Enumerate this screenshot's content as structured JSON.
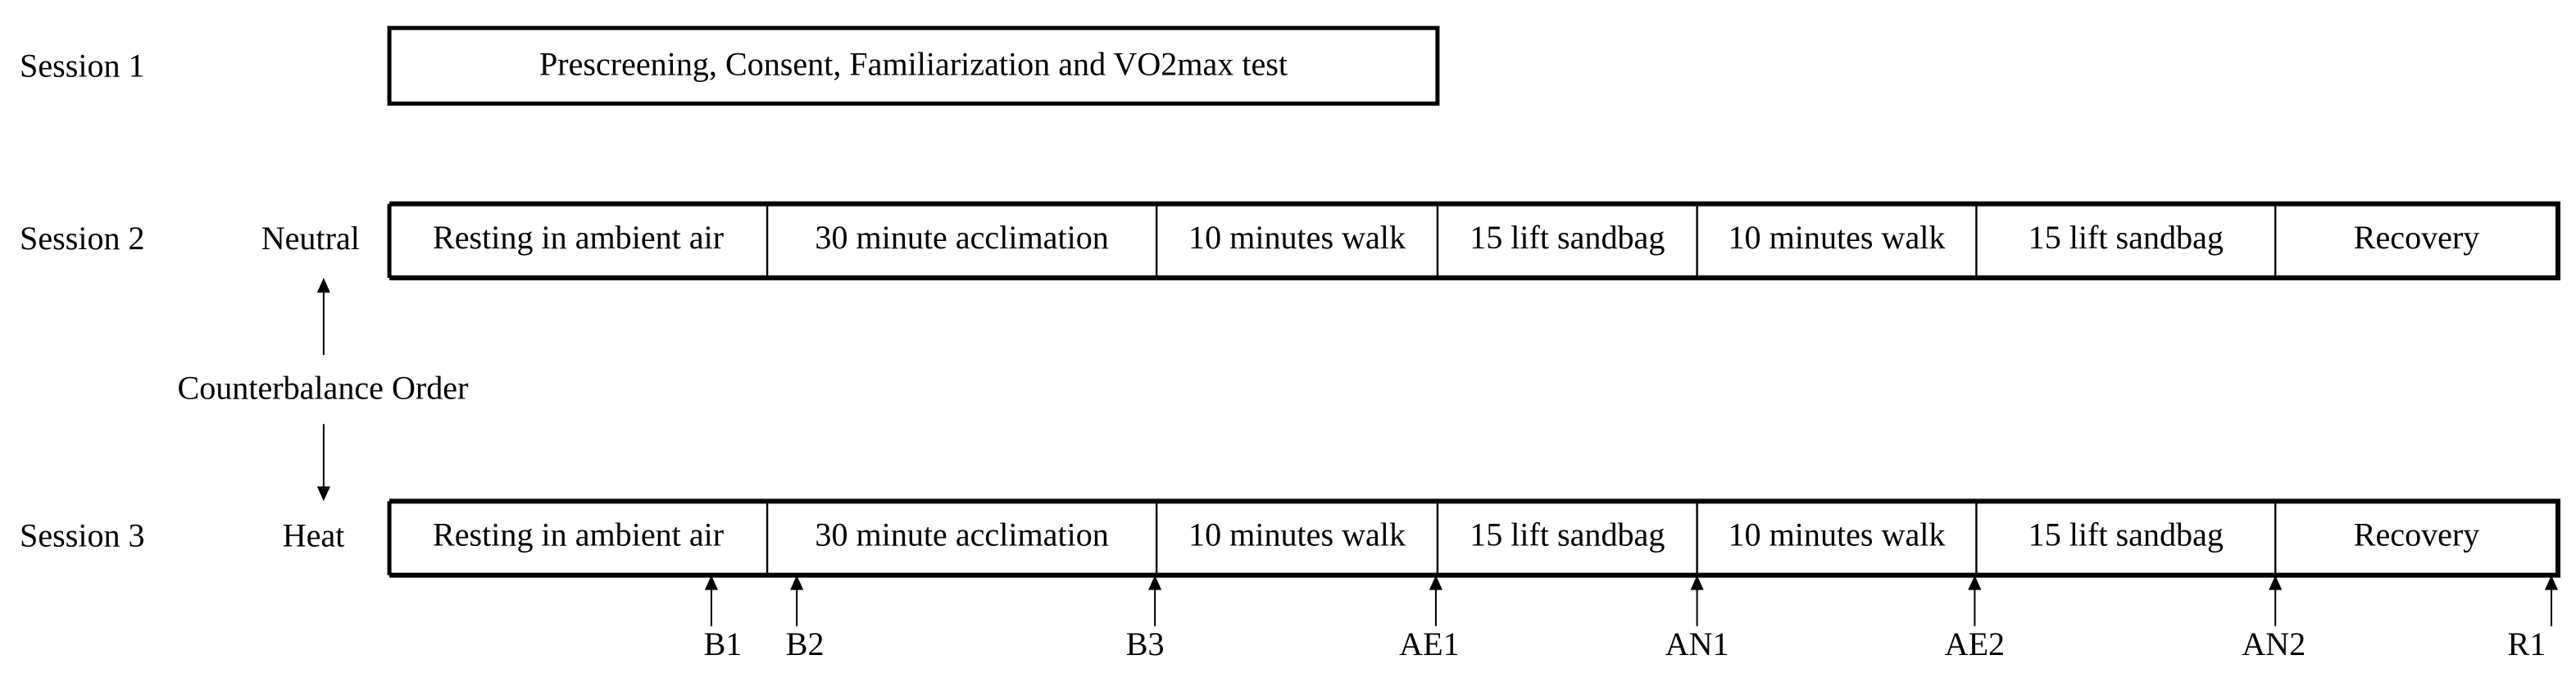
{
  "session1": {
    "label": "Session 1",
    "box": "Prescreening, Consent, Familiarization and VO2max test"
  },
  "session2": {
    "label": "Session 2",
    "condition": "Neutral",
    "phases": [
      "Resting in ambient air",
      "30 minute acclimation",
      "10 minutes walk",
      "15 lift sandbag",
      "10 minutes walk",
      "15 lift sandbag",
      "Recovery"
    ]
  },
  "counterbalance": "Counterbalance Order",
  "session3": {
    "label": "Session 3",
    "condition": "Heat",
    "phases": [
      "Resting in ambient air",
      "30 minute acclimation",
      "10 minutes walk",
      "15 lift sandbag",
      "10 minutes walk",
      "15 lift sandbag",
      "Recovery"
    ]
  },
  "markers": [
    "B1",
    "B2",
    "B3",
    "AE1",
    "AN1",
    "AE2",
    "AN2",
    "R1"
  ]
}
